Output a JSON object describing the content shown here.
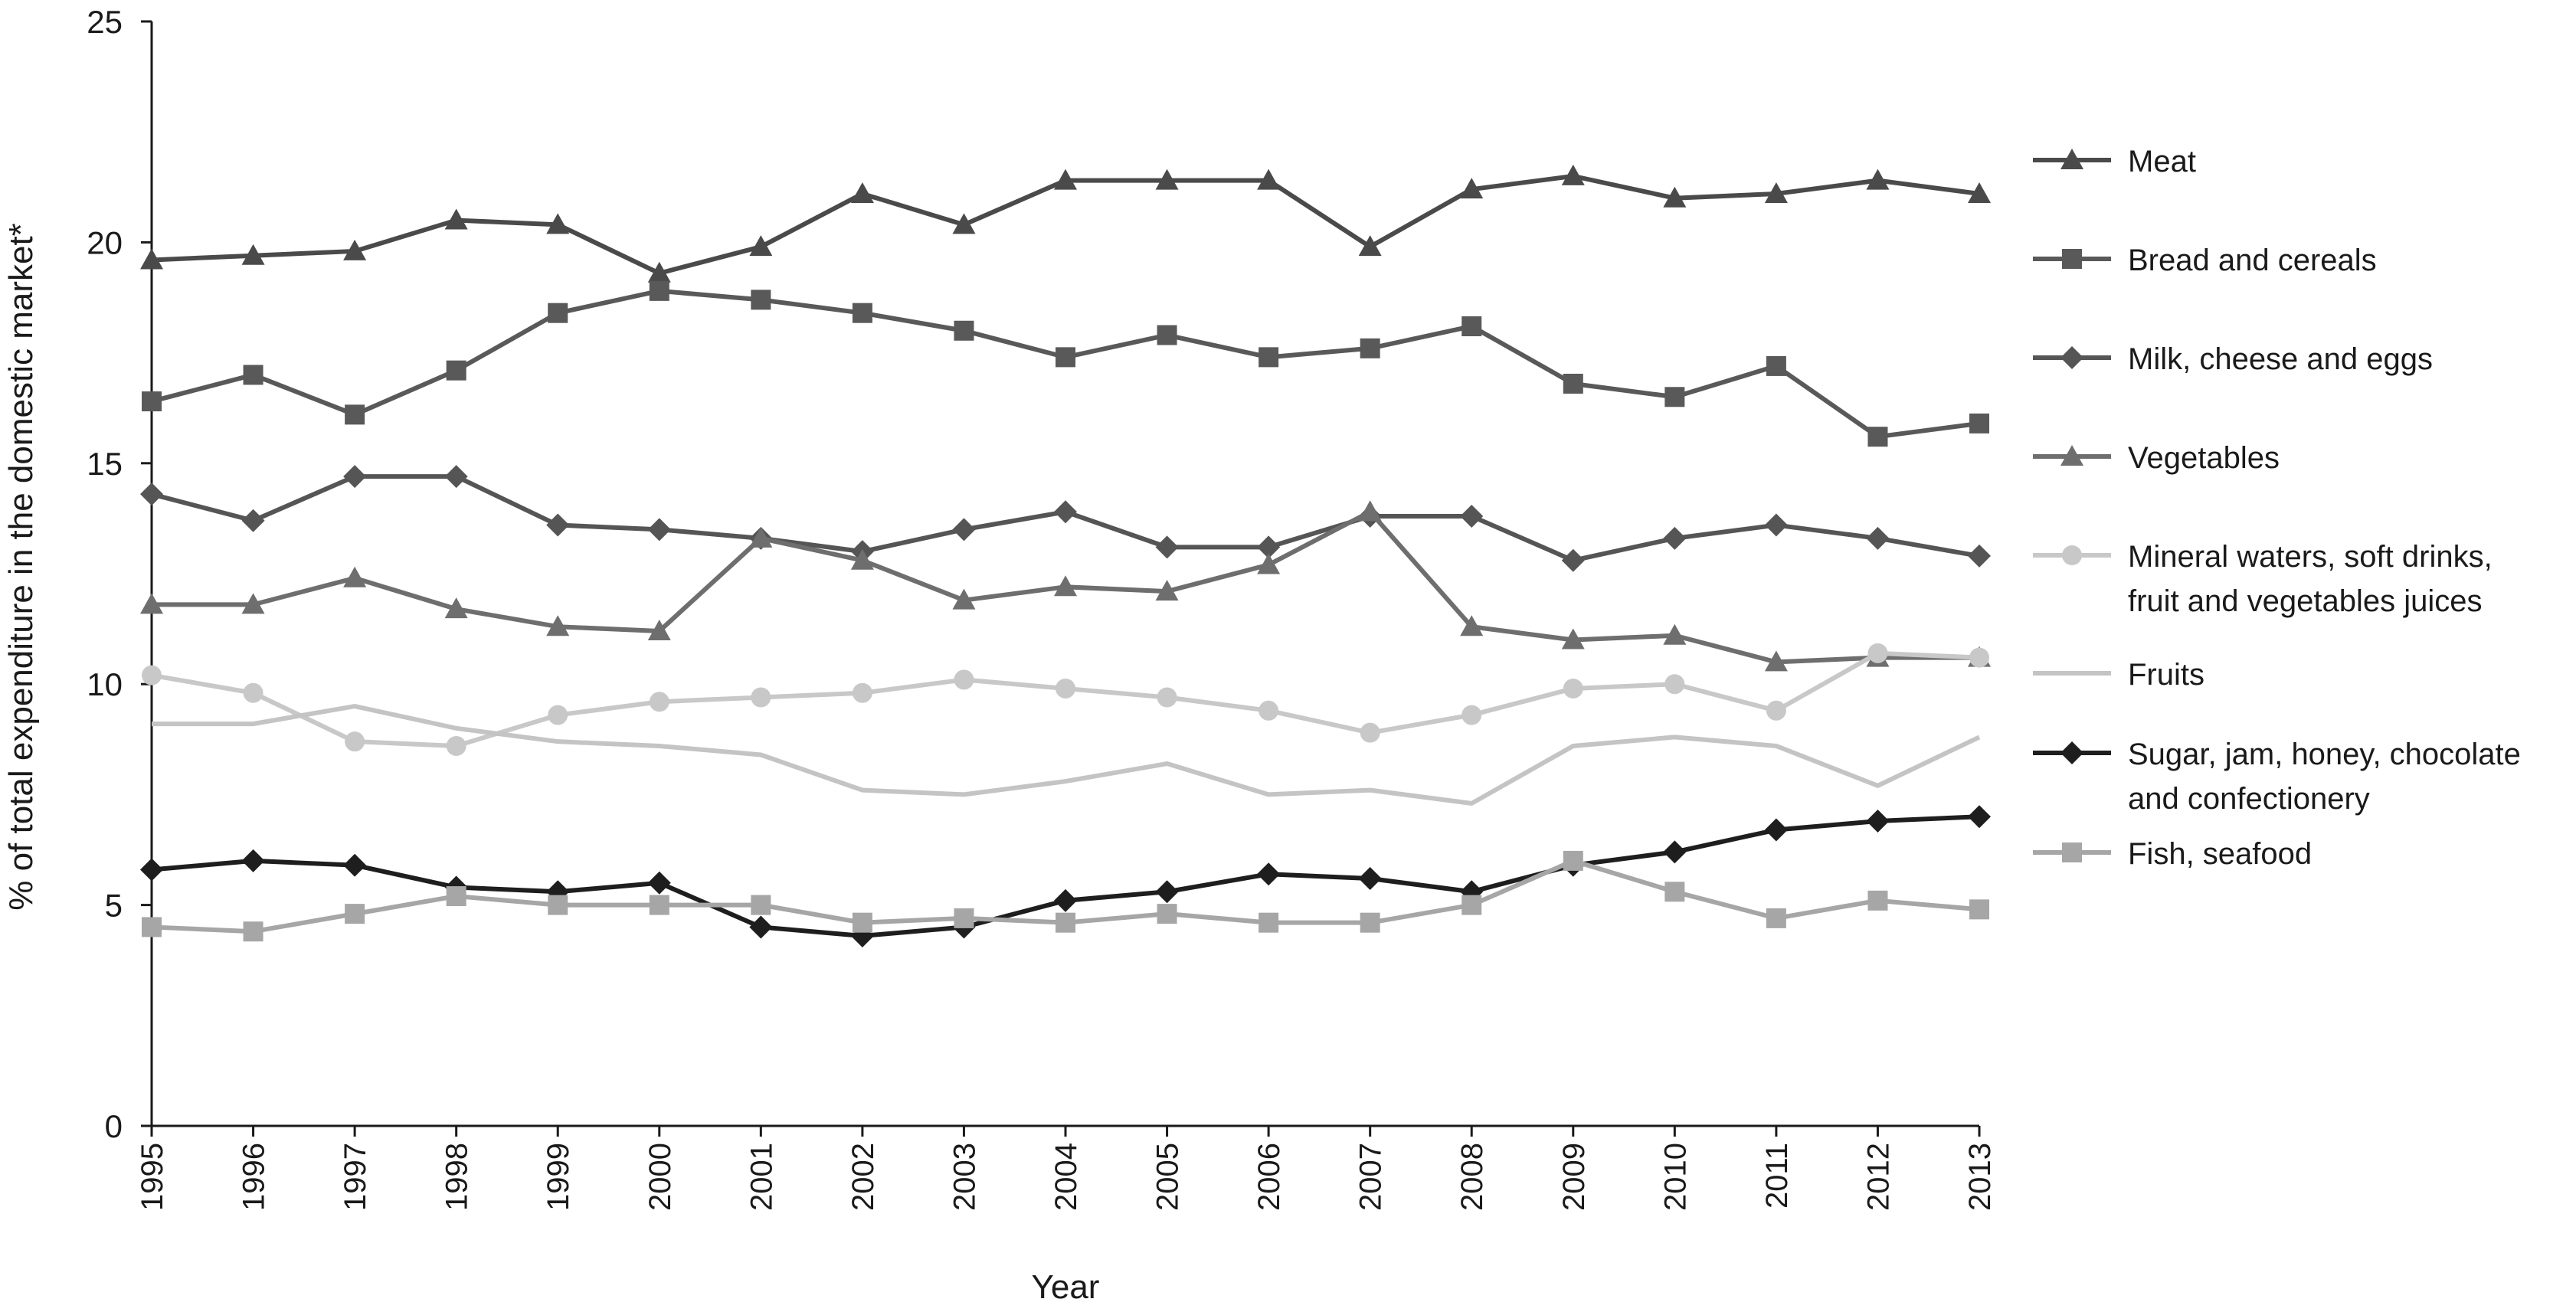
{
  "chart_data": {
    "type": "line",
    "xlabel": "Year",
    "ylabel": "% of total expenditure in the domestic market*",
    "ylim": [
      0,
      25
    ],
    "yticks": [
      0,
      5,
      10,
      15,
      20,
      25
    ],
    "grid": false,
    "legend_position": "right",
    "categories": [
      "1995",
      "1996",
      "1997",
      "1998",
      "1999",
      "2000",
      "2001",
      "2002",
      "2003",
      "2004",
      "2005",
      "2006",
      "2007",
      "2008",
      "2009",
      "2010",
      "2011",
      "2012",
      "2013"
    ],
    "series": [
      {
        "name": "Meat",
        "label_lines": [
          "Meat"
        ],
        "color": "#4a4a4a",
        "marker": "triangle",
        "values": [
          19.6,
          19.7,
          19.8,
          20.5,
          20.4,
          19.3,
          19.9,
          21.1,
          20.4,
          21.4,
          21.4,
          21.4,
          19.9,
          21.2,
          21.5,
          21.0,
          21.1,
          21.4,
          21.1
        ]
      },
      {
        "name": "Bread and cereals",
        "label_lines": [
          "Bread and cereals"
        ],
        "color": "#595959",
        "marker": "square",
        "values": [
          16.4,
          17.0,
          16.1,
          17.1,
          18.4,
          18.9,
          18.7,
          18.4,
          18.0,
          17.4,
          17.9,
          17.4,
          17.6,
          18.1,
          16.8,
          16.5,
          17.2,
          15.6,
          15.9
        ]
      },
      {
        "name": "Milk, cheese and eggs",
        "label_lines": [
          "Milk, cheese and eggs"
        ],
        "color": "#555555",
        "marker": "diamond",
        "values": [
          14.3,
          13.7,
          14.7,
          14.7,
          13.6,
          13.5,
          13.3,
          13.0,
          13.5,
          13.9,
          13.1,
          13.1,
          13.8,
          13.8,
          12.8,
          13.3,
          13.6,
          13.3,
          12.9
        ]
      },
      {
        "name": "Vegetables",
        "label_lines": [
          "Vegetables"
        ],
        "color": "#6e6e6e",
        "marker": "triangle",
        "values": [
          11.8,
          11.8,
          12.4,
          11.7,
          11.3,
          11.2,
          13.3,
          12.8,
          11.9,
          12.2,
          12.1,
          12.7,
          13.9,
          11.3,
          11.0,
          11.1,
          10.5,
          10.6,
          10.6
        ]
      },
      {
        "name": "Mineral waters, soft drinks, fruit and vegetables juices",
        "label_lines": [
          "Mineral waters, soft drinks,",
          "fruit and vegetables juices"
        ],
        "color": "#c8c8c8",
        "marker": "circle",
        "values": [
          10.2,
          9.8,
          8.7,
          8.6,
          9.3,
          9.6,
          9.7,
          9.8,
          10.1,
          9.9,
          9.7,
          9.4,
          8.9,
          9.3,
          9.9,
          10.0,
          9.4,
          10.7,
          10.6
        ]
      },
      {
        "name": "Fruits",
        "label_lines": [
          "Fruits"
        ],
        "color": "#c4c4c4",
        "marker": "none",
        "values": [
          9.1,
          9.1,
          9.5,
          9.0,
          8.7,
          8.6,
          8.4,
          7.6,
          7.5,
          7.8,
          8.2,
          7.5,
          7.6,
          7.3,
          8.6,
          8.8,
          8.6,
          7.7,
          8.8
        ]
      },
      {
        "name": "Sugar, jam, honey, chocolate and confectionery",
        "label_lines": [
          "Sugar, jam, honey, chocolate",
          "and confectionery"
        ],
        "color": "#1e1e1e",
        "marker": "diamond",
        "values": [
          5.8,
          6.0,
          5.9,
          5.4,
          5.3,
          5.5,
          4.5,
          4.3,
          4.5,
          5.1,
          5.3,
          5.7,
          5.6,
          5.3,
          5.9,
          6.2,
          6.7,
          6.9,
          7.0
        ]
      },
      {
        "name": "Fish, seafood",
        "label_lines": [
          "Fish, seafood"
        ],
        "color": "#a6a6a6",
        "marker": "square",
        "values": [
          4.5,
          4.4,
          4.8,
          5.2,
          5.0,
          5.0,
          5.0,
          4.6,
          4.7,
          4.6,
          4.8,
          4.6,
          4.6,
          5.0,
          6.0,
          5.3,
          4.7,
          5.1,
          4.9
        ]
      }
    ]
  }
}
